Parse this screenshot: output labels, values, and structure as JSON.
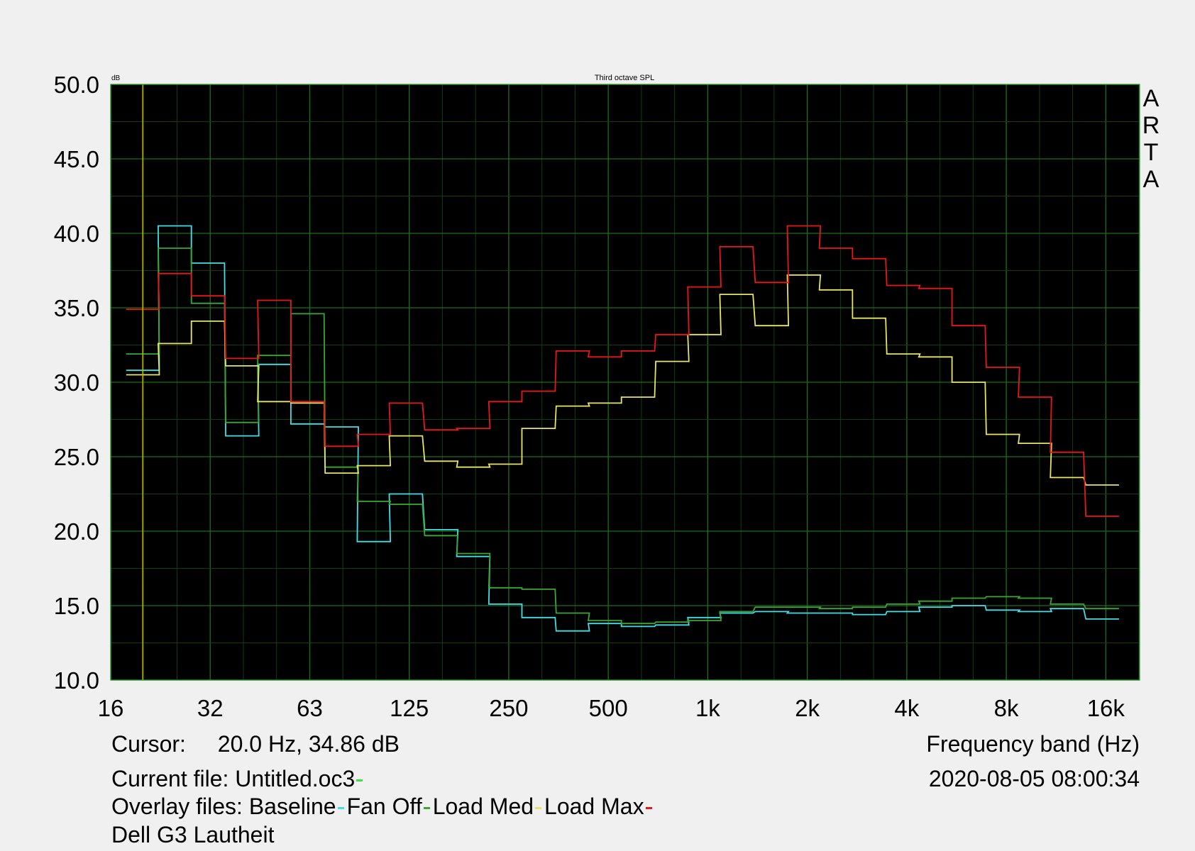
{
  "chart_data": {
    "type": "line",
    "title": "Third octave SPL",
    "ylabel": "dB",
    "xlabel": "Frequency band (Hz)",
    "brand": "ARTA",
    "ylim": [
      10,
      50
    ],
    "y_ticks": [
      "50.0",
      "45.0",
      "40.0",
      "35.0",
      "30.0",
      "25.0",
      "20.0",
      "15.0",
      "10.0"
    ],
    "x_tick_labels": [
      "16",
      "32",
      "63",
      "125",
      "250",
      "500",
      "1k",
      "2k",
      "4k",
      "8k",
      "16k"
    ],
    "x_scale": "log2",
    "bands": [
      20,
      25,
      31.5,
      40,
      50,
      63,
      80,
      100,
      125,
      160,
      200,
      250,
      315,
      400,
      500,
      630,
      800,
      1000,
      1250,
      1600,
      2000,
      2500,
      3150,
      4000,
      5000,
      6300,
      8000,
      10000,
      12500,
      16000
    ],
    "cursor_hz": 20,
    "grid": true,
    "background": "#000000",
    "series": [
      {
        "name": "Baseline",
        "color": "#3fe0e8",
        "values": [
          30.8,
          40.5,
          38.0,
          26.4,
          31.2,
          27.2,
          27.0,
          19.3,
          22.5,
          20.1,
          18.3,
          15.1,
          14.2,
          13.3,
          13.8,
          13.6,
          13.7,
          14.2,
          14.5,
          14.6,
          14.5,
          14.5,
          14.4,
          14.6,
          14.9,
          15.0,
          14.7,
          14.6,
          14.8,
          14.1
        ]
      },
      {
        "name": "Fan Off",
        "color": "#3aa832",
        "values": [
          31.9,
          39.0,
          35.3,
          27.3,
          31.8,
          34.6,
          24.3,
          22.0,
          21.8,
          19.7,
          18.5,
          16.2,
          16.1,
          14.5,
          14.0,
          13.8,
          13.9,
          14.0,
          14.6,
          14.9,
          14.9,
          14.8,
          14.9,
          15.1,
          15.3,
          15.5,
          15.6,
          15.5,
          15.1,
          14.8
        ]
      },
      {
        "name": "Load Med",
        "color": "#e8e468",
        "values": [
          30.5,
          32.6,
          34.1,
          31.1,
          28.7,
          28.6,
          23.9,
          24.4,
          26.4,
          24.7,
          24.3,
          24.5,
          26.9,
          28.4,
          28.6,
          29.0,
          31.4,
          33.2,
          35.9,
          33.8,
          37.2,
          36.2,
          34.3,
          31.9,
          31.7,
          30.0,
          26.5,
          25.9,
          23.6,
          23.1
        ]
      },
      {
        "name": "Load Max",
        "color": "#e81818",
        "values": [
          34.9,
          37.3,
          35.8,
          31.6,
          35.5,
          28.7,
          25.7,
          26.5,
          28.6,
          26.8,
          26.9,
          28.7,
          29.4,
          32.1,
          31.7,
          32.1,
          33.2,
          36.4,
          39.1,
          36.7,
          40.5,
          39.0,
          38.3,
          36.5,
          36.3,
          33.8,
          31.0,
          29.0,
          25.3,
          21.0
        ]
      }
    ]
  },
  "info": {
    "cursor_label": "Cursor:",
    "cursor_value": "20.0 Hz, 34.86 dB",
    "current_file_label": "Current file: Untitled.oc3",
    "current_file_color": "#3fe03f",
    "overlay_label": "Overlay files:",
    "measurement_title": "Dell G3 Lautheit",
    "datetime": "2020-08-05  08:00:34"
  }
}
